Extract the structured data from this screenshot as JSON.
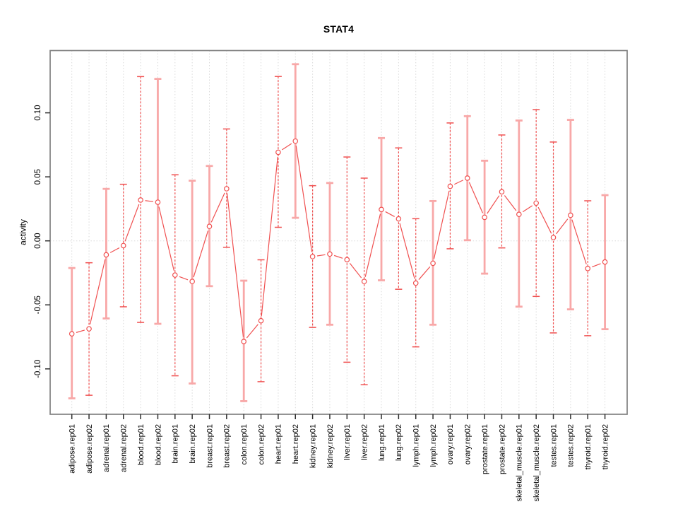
{
  "window": {
    "background": "#ffffff"
  },
  "chart_data": {
    "type": "line",
    "title": "STAT4",
    "xlabel": "",
    "ylabel": "activity",
    "ylim": [
      -0.1363,
      0.1488
    ],
    "yticks": [
      -0.1,
      -0.05,
      0.0,
      0.05,
      0.1
    ],
    "ytick_labels": [
      "-0.10",
      "-0.05",
      "0.00",
      "0.05",
      "0.10"
    ],
    "grid": "vertical dotted gridline at every category; dotted horizontal line at y=0 only",
    "legend_position": "none",
    "marker": "open-circle",
    "categories": [
      "adipose.rep01",
      "adipose.rep02",
      "adrenal.rep01",
      "adrenal.rep02",
      "blood.rep01",
      "blood.rep02",
      "brain.rep01",
      "brain.rep02",
      "breast.rep01",
      "breast.rep02",
      "colon.rep01",
      "colon.rep02",
      "heart.rep01",
      "heart.rep02",
      "kidney.rep01",
      "kidney.rep02",
      "liver.rep01",
      "liver.rep02",
      "lung.rep01",
      "lung.rep02",
      "lymph.rep01",
      "lymph.rep02",
      "ovary.rep01",
      "ovary.rep02",
      "prostate.rep01",
      "prostate.rep02",
      "skeletal_muscle.rep01",
      "skeletal_muscle.rep02",
      "testes.rep01",
      "testes.rep02",
      "thyroid.rep01",
      "thyroid.rep02"
    ],
    "series": [
      {
        "name": "STAT4 activity with error bars",
        "values": [
          -0.0726,
          -0.0687,
          -0.0109,
          -0.0037,
          0.0319,
          0.0302,
          -0.0267,
          -0.0317,
          0.0113,
          0.0407,
          -0.0786,
          -0.0624,
          0.0692,
          0.0779,
          -0.0123,
          -0.0103,
          -0.0147,
          -0.0317,
          0.0245,
          0.0172,
          -0.033,
          -0.0175,
          0.0426,
          0.049,
          0.0184,
          0.0383,
          0.0207,
          0.0295,
          0.0026,
          0.02,
          -0.0216,
          -0.0165
        ],
        "ci_upper": [
          -0.0212,
          -0.0171,
          0.0406,
          0.0442,
          0.1283,
          0.1265,
          0.0516,
          0.047,
          0.0585,
          0.0874,
          -0.0311,
          -0.0148,
          0.1284,
          0.138,
          0.0431,
          0.0452,
          0.0655,
          0.049,
          0.0803,
          0.0726,
          0.0173,
          0.0311,
          0.0921,
          0.0974,
          0.0626,
          0.0827,
          0.094,
          0.1025,
          0.0772,
          0.0945,
          0.0313,
          0.0357
        ],
        "ci_lower": [
          -0.123,
          -0.1206,
          -0.0606,
          -0.0515,
          -0.0637,
          -0.0648,
          -0.1054,
          -0.1114,
          -0.0354,
          -0.005,
          -0.1252,
          -0.11,
          0.0106,
          0.018,
          -0.0676,
          -0.0655,
          -0.0948,
          -0.1124,
          -0.0308,
          -0.0378,
          -0.0828,
          -0.0655,
          -0.0062,
          0.0005,
          -0.0256,
          -0.0055,
          -0.0514,
          -0.0434,
          -0.0719,
          -0.0535,
          -0.0741,
          -0.069
        ],
        "bar_styles": [
          "solid",
          "dashed",
          "solid",
          "dashed",
          "dashed",
          "solid",
          "dashed",
          "solid",
          "solid",
          "dashed",
          "solid",
          "dashed",
          "dashed",
          "solid",
          "dashed",
          "solid",
          "dashed",
          "dashed",
          "solid",
          "dashed",
          "dashed",
          "solid",
          "dashed",
          "solid",
          "solid",
          "dashed",
          "solid",
          "dashed",
          "dashed",
          "solid",
          "dashed",
          "solid"
        ]
      }
    ],
    "colors": {
      "line": "#f05050",
      "error_bar_solid": "#f8a8a8",
      "error_bar_dashed": "#f05050",
      "grid": "#d9d9d9",
      "border": "#828282",
      "tick": "#2e2e2e",
      "text": "#000000",
      "background": "#ffffff"
    }
  }
}
